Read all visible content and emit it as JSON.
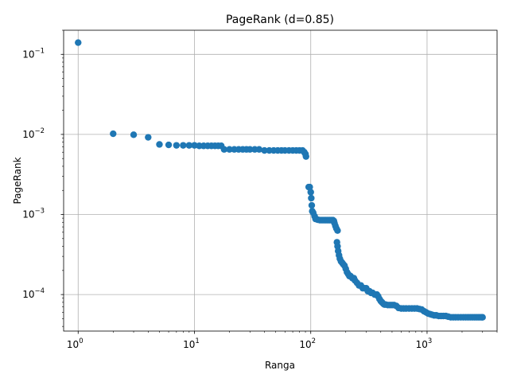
{
  "chart_data": {
    "type": "scatter",
    "title": "PageRank (d=0.85)",
    "xlabel": "Ranga",
    "ylabel": "PageRank",
    "xscale": "log",
    "yscale": "log",
    "xlim": [
      0.75,
      4000
    ],
    "ylim": [
      3.5e-05,
      0.2
    ],
    "grid": true,
    "marker_color": "#1f77b4",
    "x_ticks": [
      {
        "value": 1,
        "base": "10",
        "exp": "0"
      },
      {
        "value": 10,
        "base": "10",
        "exp": "1"
      },
      {
        "value": 100,
        "base": "10",
        "exp": "2"
      },
      {
        "value": 1000,
        "base": "10",
        "exp": "3"
      }
    ],
    "y_ticks": [
      {
        "value": 0.1,
        "base": "10",
        "exp": "−1"
      },
      {
        "value": 0.01,
        "base": "10",
        "exp": "−2"
      },
      {
        "value": 0.001,
        "base": "10",
        "exp": "−3"
      },
      {
        "value": 0.0001,
        "base": "10",
        "exp": "−4"
      }
    ],
    "points": [
      [
        1,
        0.14
      ],
      [
        2,
        0.0102
      ],
      [
        3,
        0.0099
      ],
      [
        4,
        0.0092
      ],
      [
        5,
        0.0075
      ],
      [
        6,
        0.0074
      ],
      [
        7,
        0.0073
      ],
      [
        8,
        0.0073
      ],
      [
        9,
        0.0073
      ],
      [
        10,
        0.0073
      ],
      [
        11,
        0.0072
      ],
      [
        12,
        0.0072
      ],
      [
        13,
        0.0072
      ],
      [
        14,
        0.0072
      ],
      [
        15,
        0.0072
      ],
      [
        16,
        0.0072
      ],
      [
        17,
        0.0072
      ],
      [
        18,
        0.0065
      ],
      [
        20,
        0.0065
      ],
      [
        22,
        0.0065
      ],
      [
        24,
        0.0065
      ],
      [
        26,
        0.0065
      ],
      [
        28,
        0.0065
      ],
      [
        30,
        0.0065
      ],
      [
        33,
        0.0065
      ],
      [
        36,
        0.0065
      ],
      [
        40,
        0.0063
      ],
      [
        44,
        0.0063
      ],
      [
        48,
        0.0063
      ],
      [
        52,
        0.0063
      ],
      [
        56,
        0.0063
      ],
      [
        60,
        0.0063
      ],
      [
        65,
        0.0063
      ],
      [
        70,
        0.0063
      ],
      [
        75,
        0.0063
      ],
      [
        80,
        0.0063
      ],
      [
        85,
        0.0063
      ],
      [
        88,
        0.006
      ],
      [
        90,
        0.0057
      ],
      [
        91,
        0.0053
      ],
      [
        96,
        0.0022
      ],
      [
        98,
        0.0022
      ],
      [
        100,
        0.0019
      ],
      [
        101,
        0.0016
      ],
      [
        102,
        0.0013
      ],
      [
        103,
        0.0011
      ],
      [
        105,
        0.00105
      ],
      [
        108,
        0.00095
      ],
      [
        110,
        0.00088
      ],
      [
        115,
        0.00086
      ],
      [
        120,
        0.00085
      ],
      [
        125,
        0.00085
      ],
      [
        130,
        0.00085
      ],
      [
        135,
        0.00085
      ],
      [
        140,
        0.00085
      ],
      [
        145,
        0.00085
      ],
      [
        150,
        0.00085
      ],
      [
        155,
        0.00085
      ],
      [
        158,
        0.00083
      ],
      [
        160,
        0.00078
      ],
      [
        163,
        0.00072
      ],
      [
        166,
        0.00067
      ],
      [
        170,
        0.00063
      ],
      [
        168,
        0.00045
      ],
      [
        170,
        0.0004
      ],
      [
        172,
        0.00035
      ],
      [
        175,
        0.00031
      ],
      [
        178,
        0.00028
      ],
      [
        182,
        0.00026
      ],
      [
        186,
        0.00025
      ],
      [
        190,
        0.00024
      ],
      [
        195,
        0.00023
      ],
      [
        200,
        0.00021
      ],
      [
        205,
        0.00019
      ],
      [
        210,
        0.00018
      ],
      [
        215,
        0.00017
      ],
      [
        220,
        0.00017
      ],
      [
        228,
        0.00016
      ],
      [
        235,
        0.00016
      ],
      [
        240,
        0.00015
      ],
      [
        250,
        0.00014
      ],
      [
        260,
        0.00013
      ],
      [
        270,
        0.00013
      ],
      [
        280,
        0.00012
      ],
      [
        290,
        0.00012
      ],
      [
        300,
        0.00012
      ],
      [
        310,
        0.00011
      ],
      [
        320,
        0.00011
      ],
      [
        330,
        0.000105
      ],
      [
        340,
        0.000105
      ],
      [
        355,
        0.0001
      ],
      [
        370,
        0.0001
      ],
      [
        380,
        9.5e-05
      ],
      [
        390,
        8.8e-05
      ],
      [
        400,
        8.3e-05
      ],
      [
        410,
        8e-05
      ],
      [
        420,
        7.7e-05
      ],
      [
        430,
        7.5e-05
      ],
      [
        440,
        7.5e-05
      ],
      [
        460,
        7.4e-05
      ],
      [
        480,
        7.4e-05
      ],
      [
        500,
        7.4e-05
      ],
      [
        520,
        7.4e-05
      ],
      [
        545,
        7.2e-05
      ],
      [
        570,
        6.8e-05
      ],
      [
        600,
        6.7e-05
      ],
      [
        630,
        6.7e-05
      ],
      [
        660,
        6.7e-05
      ],
      [
        700,
        6.7e-05
      ],
      [
        740,
        6.7e-05
      ],
      [
        780,
        6.7e-05
      ],
      [
        820,
        6.7e-05
      ],
      [
        860,
        6.6e-05
      ],
      [
        900,
        6.5e-05
      ],
      [
        940,
        6.2e-05
      ],
      [
        980,
        6e-05
      ],
      [
        1020,
        5.8e-05
      ],
      [
        1060,
        5.7e-05
      ],
      [
        1100,
        5.6e-05
      ],
      [
        1150,
        5.5e-05
      ],
      [
        1200,
        5.5e-05
      ],
      [
        1260,
        5.4e-05
      ],
      [
        1320,
        5.4e-05
      ],
      [
        1380,
        5.4e-05
      ],
      [
        1450,
        5.4e-05
      ],
      [
        1520,
        5.3e-05
      ],
      [
        1600,
        5.2e-05
      ],
      [
        1680,
        5.2e-05
      ],
      [
        1760,
        5.2e-05
      ],
      [
        1850,
        5.2e-05
      ],
      [
        1950,
        5.2e-05
      ],
      [
        2050,
        5.2e-05
      ],
      [
        2150,
        5.2e-05
      ],
      [
        2250,
        5.2e-05
      ],
      [
        2350,
        5.2e-05
      ],
      [
        2450,
        5.2e-05
      ],
      [
        2550,
        5.2e-05
      ],
      [
        2650,
        5.2e-05
      ],
      [
        2750,
        5.2e-05
      ],
      [
        2850,
        5.2e-05
      ],
      [
        2950,
        5.2e-05
      ],
      [
        3000,
        5.2e-05
      ]
    ]
  }
}
